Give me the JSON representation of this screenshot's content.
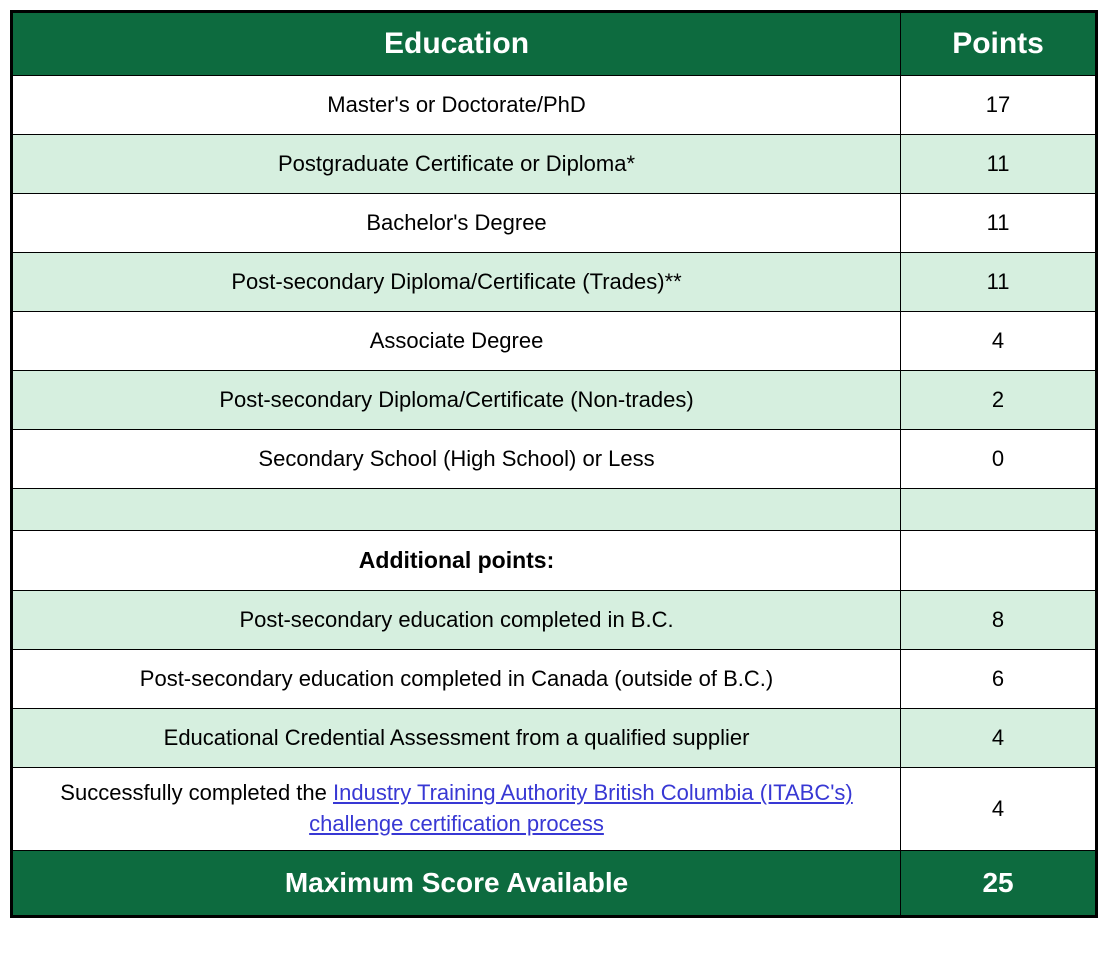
{
  "header": {
    "col1": "Education",
    "col2": "Points"
  },
  "rows": [
    {
      "label": "Master's or Doctorate/PhD",
      "points": "17",
      "bg": "white"
    },
    {
      "label": "Postgraduate Certificate or Diploma*",
      "points": "11",
      "bg": "alt"
    },
    {
      "label": "Bachelor's Degree",
      "points": "11",
      "bg": "white"
    },
    {
      "label": "Post-secondary Diploma/Certificate (Trades)**",
      "points": "11",
      "bg": "alt"
    },
    {
      "label": "Associate Degree",
      "points": "4",
      "bg": "white"
    },
    {
      "label": "Post-secondary Diploma/Certificate (Non-trades)",
      "points": "2",
      "bg": "alt"
    },
    {
      "label": "Secondary School (High School) or Less",
      "points": "0",
      "bg": "white"
    }
  ],
  "additional_header": "Additional points:",
  "additional_rows": [
    {
      "label": "Post-secondary education completed in B.C.",
      "points": "8",
      "bg": "alt"
    },
    {
      "label": "Post-secondary education completed in Canada (outside of B.C.)",
      "points": "6",
      "bg": "white"
    },
    {
      "label": "Educational Credential Assessment from a qualified supplier",
      "points": "4",
      "bg": "alt"
    }
  ],
  "link_row": {
    "prefix": "Successfully completed the ",
    "link_text": "Industry Training Authority British Columbia (ITABC's) challenge certification process",
    "points": "4",
    "bg": "white"
  },
  "footer": {
    "label": "Maximum Score Available",
    "points": "25"
  },
  "colors": {
    "header_bg": "#0d6b3f",
    "alt_bg": "#d6efdf",
    "white_bg": "#ffffff",
    "border": "#000000",
    "link": "#3838d4"
  }
}
